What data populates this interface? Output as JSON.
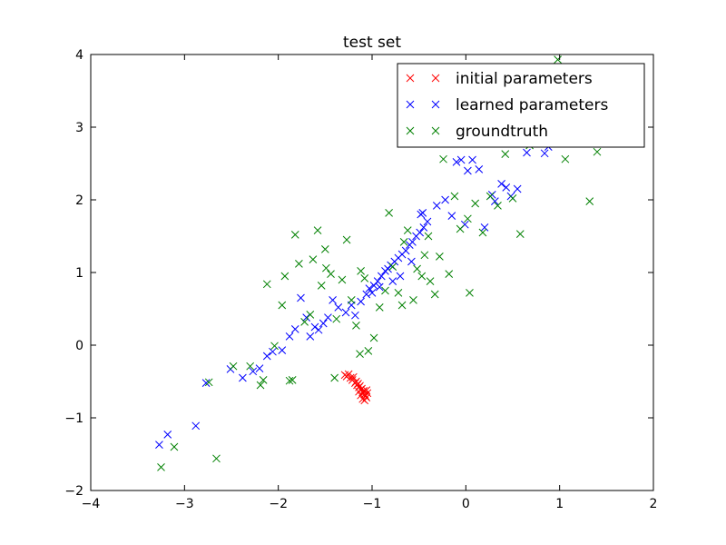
{
  "chart_data": {
    "type": "scatter",
    "title": "test set",
    "xlabel": "",
    "ylabel": "",
    "xlim": [
      -4,
      2
    ],
    "ylim": [
      -2,
      4
    ],
    "xticks": [
      -4,
      -3,
      -2,
      -1,
      0,
      1,
      2
    ],
    "yticks": [
      -2,
      -1,
      0,
      1,
      2,
      3,
      4
    ],
    "x_tick_labels": [
      "−4",
      "−3",
      "−2",
      "−1",
      "0",
      "1",
      "2"
    ],
    "y_tick_labels": [
      "−2",
      "−1",
      "0",
      "1",
      "2",
      "3",
      "4"
    ],
    "grid": false,
    "legend": {
      "position": "top-right"
    },
    "marker": "x",
    "series": [
      {
        "name": "initial parameters",
        "color": "#ff0000",
        "points": [
          [
            -1.29,
            -0.41
          ],
          [
            -1.27,
            -0.43
          ],
          [
            -1.25,
            -0.4
          ],
          [
            -1.23,
            -0.45
          ],
          [
            -1.21,
            -0.48
          ],
          [
            -1.2,
            -0.44
          ],
          [
            -1.18,
            -0.52
          ],
          [
            -1.17,
            -0.5
          ],
          [
            -1.16,
            -0.55
          ],
          [
            -1.15,
            -0.53
          ],
          [
            -1.14,
            -0.58
          ],
          [
            -1.13,
            -0.56
          ],
          [
            -1.12,
            -0.61
          ],
          [
            -1.11,
            -0.6
          ],
          [
            -1.1,
            -0.65
          ],
          [
            -1.09,
            -0.63
          ],
          [
            -1.08,
            -0.68
          ],
          [
            -1.07,
            -0.7
          ],
          [
            -1.06,
            -0.72
          ],
          [
            -1.05,
            -0.66
          ],
          [
            -1.1,
            -0.74
          ],
          [
            -1.08,
            -0.76
          ],
          [
            -1.12,
            -0.69
          ],
          [
            -1.06,
            -0.62
          ],
          [
            -1.14,
            -0.64
          ]
        ]
      },
      {
        "name": "learned parameters",
        "color": "#0000ff",
        "points": [
          [
            -3.27,
            -1.37
          ],
          [
            -3.18,
            -1.23
          ],
          [
            -2.88,
            -1.11
          ],
          [
            -2.77,
            -0.52
          ],
          [
            -2.51,
            -0.33
          ],
          [
            -2.38,
            -0.45
          ],
          [
            -2.27,
            -0.36
          ],
          [
            -2.2,
            -0.32
          ],
          [
            -2.12,
            -0.15
          ],
          [
            -2.06,
            -0.09
          ],
          [
            -1.96,
            -0.07
          ],
          [
            -1.88,
            0.12
          ],
          [
            -1.82,
            0.22
          ],
          [
            -1.76,
            0.65
          ],
          [
            -1.7,
            0.38
          ],
          [
            -1.66,
            0.12
          ],
          [
            -1.61,
            0.25
          ],
          [
            -1.57,
            0.21
          ],
          [
            -1.52,
            0.3
          ],
          [
            -1.47,
            0.38
          ],
          [
            -1.42,
            0.62
          ],
          [
            -1.36,
            0.52
          ],
          [
            -1.28,
            0.45
          ],
          [
            -1.22,
            0.55
          ],
          [
            -1.18,
            0.41
          ],
          [
            -1.12,
            0.6
          ],
          [
            -1.06,
            0.7
          ],
          [
            -1.03,
            0.78
          ],
          [
            -0.98,
            0.82
          ],
          [
            -0.94,
            0.88
          ],
          [
            -0.9,
            0.95
          ],
          [
            -0.86,
            1.02
          ],
          [
            -0.83,
            1.05
          ],
          [
            -0.8,
            1.1
          ],
          [
            -0.76,
            1.15
          ],
          [
            -0.72,
            1.2
          ],
          [
            -0.68,
            1.25
          ],
          [
            -0.64,
            1.3
          ],
          [
            -0.6,
            1.38
          ],
          [
            -0.57,
            1.42
          ],
          [
            -0.53,
            1.5
          ],
          [
            -0.49,
            1.55
          ],
          [
            -0.45,
            1.62
          ],
          [
            -0.41,
            1.7
          ],
          [
            -0.48,
            1.8
          ],
          [
            -0.46,
            1.82
          ],
          [
            -0.31,
            1.92
          ],
          [
            -0.22,
            2.0
          ],
          [
            -0.15,
            1.78
          ],
          [
            -0.1,
            2.52
          ],
          [
            -0.05,
            2.55
          ],
          [
            -0.01,
            1.66
          ],
          [
            0.02,
            2.4
          ],
          [
            0.07,
            2.55
          ],
          [
            0.14,
            2.42
          ],
          [
            0.2,
            1.62
          ],
          [
            0.28,
            2.07
          ],
          [
            0.31,
            1.98
          ],
          [
            0.38,
            2.22
          ],
          [
            0.43,
            2.17
          ],
          [
            0.48,
            2.05
          ],
          [
            0.55,
            2.15
          ],
          [
            0.65,
            2.65
          ],
          [
            0.84,
            2.64
          ],
          [
            0.88,
            2.73
          ],
          [
            -0.58,
            1.15
          ],
          [
            -0.7,
            0.95
          ],
          [
            -0.78,
            0.88
          ],
          [
            -0.92,
            0.8
          ],
          [
            -1.0,
            0.72
          ]
        ]
      },
      {
        "name": "groundtruth",
        "color": "#008000",
        "points": [
          [
            -3.11,
            -1.4
          ],
          [
            -3.25,
            -1.68
          ],
          [
            -2.66,
            -1.56
          ],
          [
            -2.74,
            -0.51
          ],
          [
            -2.48,
            -0.29
          ],
          [
            -2.3,
            -0.29
          ],
          [
            -2.16,
            -0.48
          ],
          [
            -2.12,
            0.84
          ],
          [
            -2.04,
            -0.01
          ],
          [
            -1.96,
            0.55
          ],
          [
            -1.93,
            0.95
          ],
          [
            -1.88,
            -0.49
          ],
          [
            -1.82,
            1.52
          ],
          [
            -1.78,
            1.12
          ],
          [
            -1.72,
            0.32
          ],
          [
            -1.63,
            1.18
          ],
          [
            -1.58,
            1.58
          ],
          [
            -1.54,
            0.82
          ],
          [
            -1.49,
            1.06
          ],
          [
            -1.44,
            0.98
          ],
          [
            -1.38,
            0.36
          ],
          [
            -1.32,
            0.9
          ],
          [
            -1.27,
            1.45
          ],
          [
            -1.22,
            0.62
          ],
          [
            -1.17,
            0.27
          ],
          [
            -1.13,
            -0.12
          ],
          [
            -1.08,
            0.92
          ],
          [
            -1.04,
            -0.08
          ],
          [
            -0.98,
            0.1
          ],
          [
            -0.92,
            0.52
          ],
          [
            -0.86,
            0.75
          ],
          [
            -0.82,
            1.82
          ],
          [
            -0.78,
            1.08
          ],
          [
            -0.72,
            0.72
          ],
          [
            -0.68,
            0.55
          ],
          [
            -0.62,
            1.58
          ],
          [
            -0.56,
            0.62
          ],
          [
            -0.52,
            1.05
          ],
          [
            -0.47,
            0.95
          ],
          [
            -0.44,
            1.24
          ],
          [
            -0.38,
            0.88
          ],
          [
            -0.33,
            0.7
          ],
          [
            -0.28,
            1.22
          ],
          [
            -0.24,
            2.56
          ],
          [
            -0.18,
            0.98
          ],
          [
            -0.12,
            2.05
          ],
          [
            -0.06,
            1.6
          ],
          [
            0.02,
            1.74
          ],
          [
            0.04,
            0.72
          ],
          [
            0.1,
            1.95
          ],
          [
            0.18,
            1.55
          ],
          [
            0.26,
            2.05
          ],
          [
            0.34,
            1.92
          ],
          [
            0.42,
            2.63
          ],
          [
            0.5,
            2.02
          ],
          [
            0.58,
            1.53
          ],
          [
            0.68,
            2.75
          ],
          [
            0.84,
            2.83
          ],
          [
            0.98,
            3.93
          ],
          [
            1.06,
            2.56
          ],
          [
            1.32,
            1.98
          ],
          [
            1.4,
            2.66
          ],
          [
            -2.19,
            -0.55
          ],
          [
            -1.85,
            -0.48
          ],
          [
            -1.66,
            0.42
          ],
          [
            -1.5,
            1.32
          ],
          [
            -1.12,
            1.02
          ],
          [
            -0.66,
            1.42
          ],
          [
            -0.4,
            1.5
          ],
          [
            -1.4,
            -0.45
          ]
        ]
      }
    ]
  }
}
